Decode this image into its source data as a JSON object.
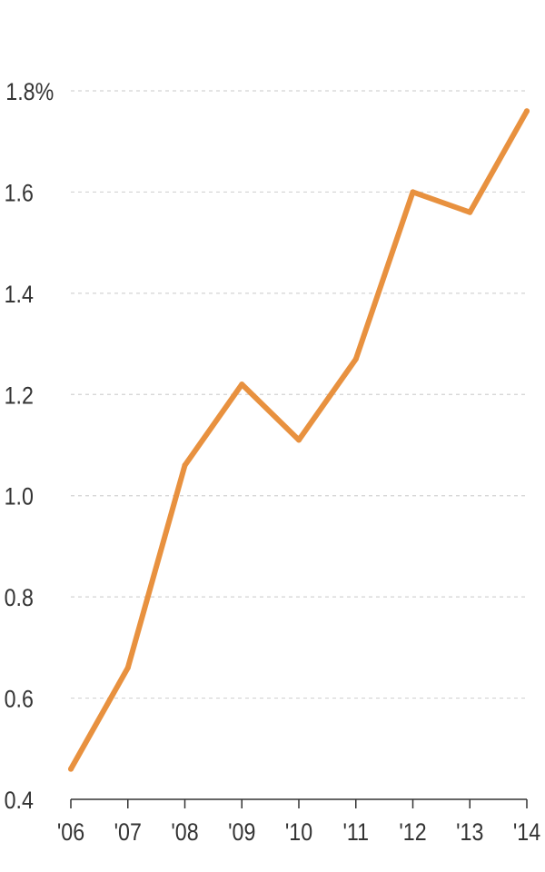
{
  "chart_data": {
    "type": "line",
    "title": "",
    "xlabel": "",
    "ylabel": "",
    "categories": [
      "'06",
      "'07",
      "'08",
      "'09",
      "'10",
      "'11",
      "'12",
      "'13",
      "'14"
    ],
    "series": [
      {
        "values": [
          0.46,
          0.66,
          1.06,
          1.22,
          1.11,
          1.27,
          1.6,
          1.56,
          1.76
        ],
        "color": "#e8913f"
      }
    ],
    "ylim": [
      0.4,
      1.8
    ],
    "y_ticks": [
      {
        "value": 1.8,
        "label": "1.8%"
      },
      {
        "value": 1.6,
        "label": "1.6"
      },
      {
        "value": 1.4,
        "label": "1.4"
      },
      {
        "value": 1.2,
        "label": "1.2"
      },
      {
        "value": 1.0,
        "label": "1.0"
      },
      {
        "value": 0.8,
        "label": "0.8"
      },
      {
        "value": 0.6,
        "label": "0.6"
      },
      {
        "value": 0.4,
        "label": "0.4"
      }
    ],
    "grid": true,
    "legend": "none"
  }
}
